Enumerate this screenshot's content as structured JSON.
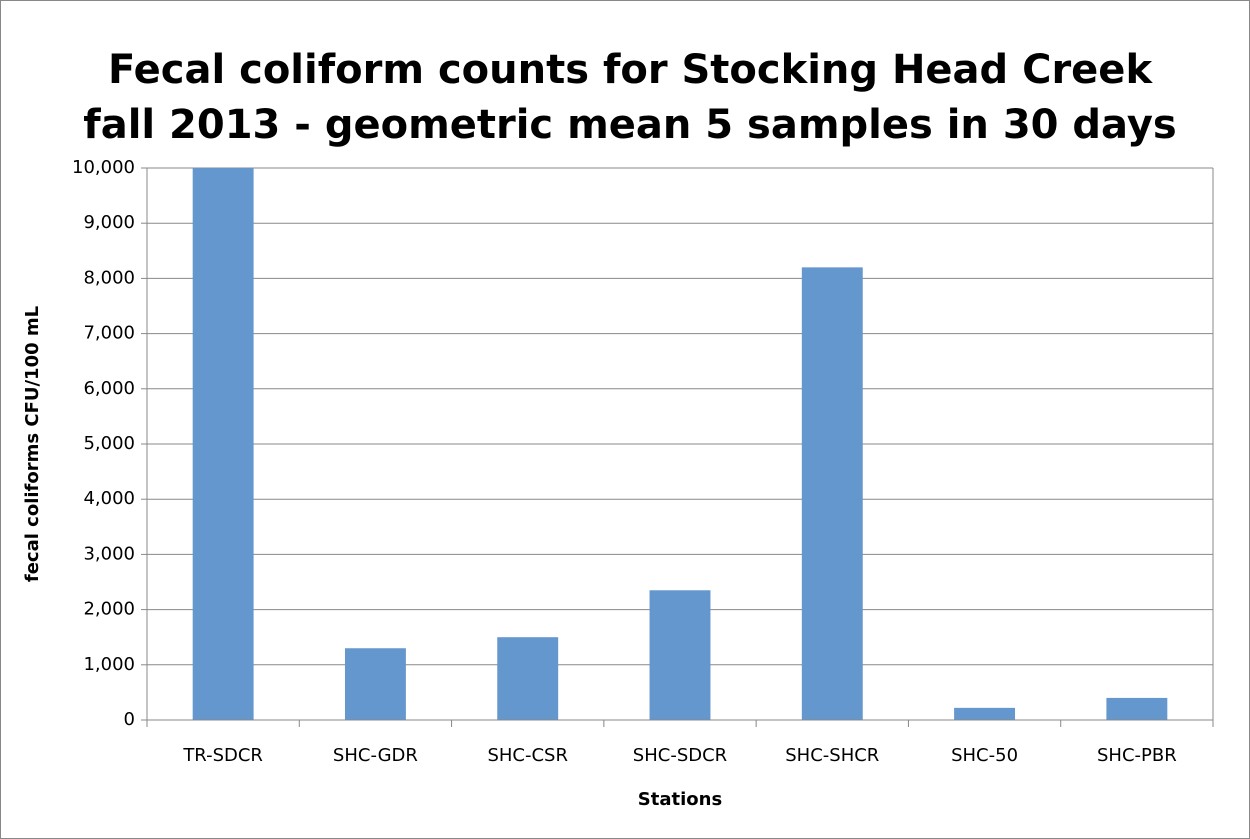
{
  "chart_data": {
    "type": "bar",
    "title": [
      "Fecal coliform counts for Stocking Head Creek",
      "fall 2013 - geometric mean 5 samples in 30 days"
    ],
    "x_label": "Stations",
    "y_label": "fecal coliforms CFU/100 mL",
    "categories": [
      "TR-SDCR",
      "SHC-GDR",
      "SHC-CSR",
      "SHC-SDCR",
      "SHC-SHCR",
      "SHC-50",
      "SHC-PBR"
    ],
    "values": [
      10000,
      1300,
      1500,
      2350,
      8200,
      220,
      400
    ],
    "color": "#6497cd",
    "ylim": [
      0,
      10000
    ],
    "yticks": [
      0,
      {
        "value": 1000,
        "label": "1,000"
      },
      {
        "value": 2000,
        "label": "2,000"
      },
      {
        "value": 3000,
        "label": "3,000"
      },
      {
        "value": 4000,
        "label": "4,000"
      },
      {
        "value": 5000,
        "label": "5,000"
      },
      {
        "value": 6000,
        "label": "6,000"
      },
      {
        "value": 7000,
        "label": "7,000"
      },
      {
        "value": 8000,
        "label": "8,000"
      },
      {
        "value": 9000,
        "label": "9,000"
      },
      {
        "value": 10000,
        "label": "10,000"
      }
    ],
    "grid": true
  }
}
